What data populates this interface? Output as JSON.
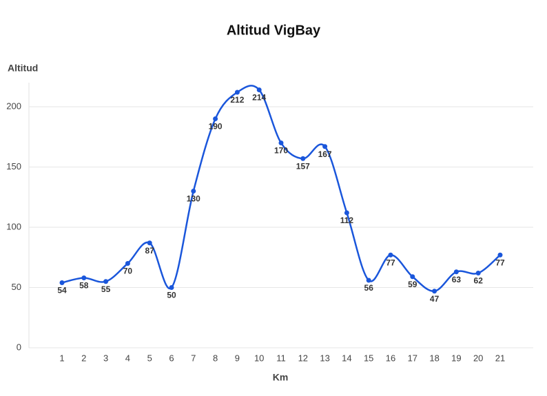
{
  "chart_data": {
    "type": "line",
    "title": "Altitud VigBay",
    "y_label": "Altitud",
    "x_label": "Km",
    "categories": [
      "1",
      "2",
      "3",
      "4",
      "5",
      "6",
      "7",
      "8",
      "9",
      "10",
      "11",
      "12",
      "13",
      "14",
      "15",
      "16",
      "17",
      "18",
      "19",
      "20",
      "21"
    ],
    "values": [
      54,
      58,
      55,
      70,
      87,
      50,
      130,
      190,
      212,
      214,
      170,
      157,
      167,
      112,
      56,
      77,
      59,
      47,
      63,
      62,
      77
    ],
    "color": "#1a56db",
    "ylim": [
      0,
      220
    ],
    "yticks": [
      0,
      50,
      100,
      150,
      200
    ],
    "grid": true,
    "smooth": true
  }
}
